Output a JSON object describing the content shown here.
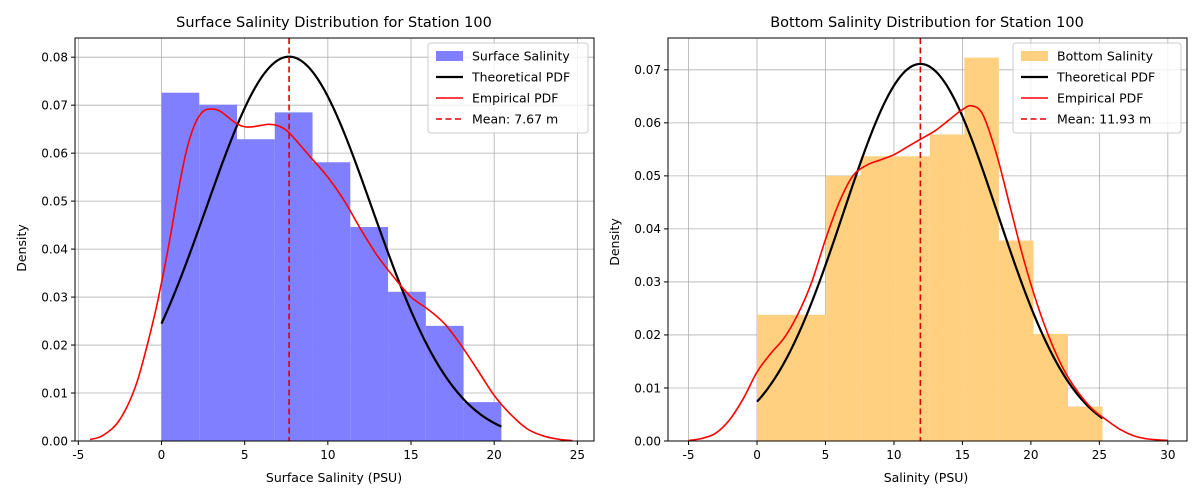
{
  "chart_data": [
    {
      "type": "bar",
      "title": "Surface Salinity Distribution for Station 100",
      "xlabel": "Surface Salinity (PSU)",
      "ylabel": "Density",
      "xlim": [
        -5.2,
        26.0
      ],
      "ylim": [
        0,
        0.084
      ],
      "xticks": [
        -5,
        0,
        5,
        10,
        15,
        20,
        25
      ],
      "yticks": [
        0.0,
        0.01,
        0.02,
        0.03,
        0.04,
        0.05,
        0.06,
        0.07,
        0.08
      ],
      "grid": true,
      "legend_position": "upper-right",
      "bins": [
        {
          "x0": 0.0,
          "x1": 2.27,
          "value": 0.0726
        },
        {
          "x0": 2.27,
          "x1": 4.54,
          "value": 0.0701
        },
        {
          "x0": 4.54,
          "x1": 6.81,
          "value": 0.0629
        },
        {
          "x0": 6.81,
          "x1": 9.08,
          "value": 0.0685
        },
        {
          "x0": 9.08,
          "x1": 11.35,
          "value": 0.0581
        },
        {
          "x0": 11.35,
          "x1": 13.62,
          "value": 0.0446
        },
        {
          "x0": 13.62,
          "x1": 15.89,
          "value": 0.0311
        },
        {
          "x0": 15.89,
          "x1": 18.16,
          "value": 0.024
        },
        {
          "x0": 18.16,
          "x1": 20.43,
          "value": 0.0081
        }
      ],
      "theoretical_pdf": {
        "mean": 7.67,
        "std": 4.98,
        "x_range": [
          0.0,
          20.43
        ]
      },
      "empirical_pdf": {
        "x": [
          -4.3,
          -3.5,
          -2.5,
          -1.5,
          -0.5,
          0.0,
          0.5,
          1.0,
          1.5,
          2.0,
          2.5,
          3.0,
          3.5,
          4.0,
          4.5,
          5.0,
          5.5,
          6.0,
          6.5,
          7.0,
          7.5,
          8.0,
          9.0,
          10.0,
          11.0,
          12.0,
          13.0,
          14.0,
          15.0,
          16.0,
          17.0,
          18.0,
          19.0,
          20.0,
          21.0,
          22.0,
          23.0,
          24.0,
          24.7
        ],
        "y": [
          0.0003,
          0.0012,
          0.0045,
          0.012,
          0.025,
          0.033,
          0.042,
          0.052,
          0.0605,
          0.066,
          0.0687,
          0.0692,
          0.0688,
          0.0675,
          0.0662,
          0.0655,
          0.0655,
          0.0658,
          0.066,
          0.0657,
          0.0648,
          0.063,
          0.059,
          0.055,
          0.05,
          0.044,
          0.0385,
          0.034,
          0.03,
          0.0275,
          0.0245,
          0.02,
          0.0148,
          0.0095,
          0.0055,
          0.0025,
          0.001,
          0.0003,
          0.0001
        ]
      },
      "mean_line": {
        "value": 7.67
      },
      "legend": [
        "Surface Salinity",
        "Theoretical PDF",
        "Empirical PDF",
        "Mean: 7.67 m"
      ],
      "colors": {
        "bars": "#7f7fff",
        "theoretical": "#000000",
        "empirical": "#ff0000",
        "mean": "#dd0000"
      }
    },
    {
      "type": "bar",
      "title": "Bottom Salinity Distribution for Station 100",
      "xlabel": "Salinity (PSU)",
      "ylabel": "Density",
      "xlim": [
        -6.5,
        31.4
      ],
      "ylim": [
        0,
        0.076
      ],
      "xticks": [
        -5,
        0,
        5,
        10,
        15,
        20,
        25,
        30
      ],
      "yticks": [
        0.0,
        0.01,
        0.02,
        0.03,
        0.04,
        0.05,
        0.06,
        0.07
      ],
      "grid": true,
      "legend_position": "upper-right",
      "bins": [
        {
          "x0": 0.0,
          "x1": 5.05,
          "value": 0.0238
        },
        {
          "x0": 5.05,
          "x1": 7.57,
          "value": 0.05
        },
        {
          "x0": 7.57,
          "x1": 10.09,
          "value": 0.0537
        },
        {
          "x0": 10.09,
          "x1": 12.62,
          "value": 0.0537
        },
        {
          "x0": 12.62,
          "x1": 15.14,
          "value": 0.0578
        },
        {
          "x0": 15.14,
          "x1": 17.66,
          "value": 0.0723
        },
        {
          "x0": 17.66,
          "x1": 20.19,
          "value": 0.0378
        },
        {
          "x0": 20.19,
          "x1": 22.71,
          "value": 0.0202
        },
        {
          "x0": 22.71,
          "x1": 25.23,
          "value": 0.0065
        }
      ],
      "theoretical_pdf": {
        "mean": 11.93,
        "std": 5.61,
        "x_range": [
          0.0,
          25.23
        ]
      },
      "empirical_pdf": {
        "x": [
          -5.0,
          -4.0,
          -3.0,
          -2.0,
          -1.0,
          0.0,
          1.0,
          2.0,
          3.0,
          4.0,
          5.0,
          6.0,
          7.0,
          8.0,
          9.0,
          10.0,
          11.0,
          12.0,
          13.0,
          14.0,
          15.0,
          15.7,
          16.5,
          17.5,
          18.5,
          19.5,
          20.5,
          21.5,
          22.5,
          23.5,
          24.5,
          25.5,
          26.5,
          27.5,
          28.5,
          30.0
        ],
        "y": [
          0.0001,
          0.0005,
          0.0015,
          0.004,
          0.008,
          0.013,
          0.0165,
          0.0195,
          0.024,
          0.03,
          0.038,
          0.045,
          0.05,
          0.052,
          0.053,
          0.054,
          0.0555,
          0.057,
          0.0585,
          0.0605,
          0.0625,
          0.0632,
          0.0615,
          0.054,
          0.044,
          0.034,
          0.0255,
          0.0185,
          0.013,
          0.009,
          0.006,
          0.004,
          0.0022,
          0.001,
          0.0004,
          0.0001
        ]
      },
      "mean_line": {
        "value": 11.93
      },
      "legend": [
        "Bottom Salinity",
        "Theoretical PDF",
        "Empirical PDF",
        "Mean: 11.93 m"
      ],
      "colors": {
        "bars": "#ffd080",
        "theoretical": "#000000",
        "empirical": "#ff0000",
        "mean": "#dd0000"
      }
    }
  ]
}
